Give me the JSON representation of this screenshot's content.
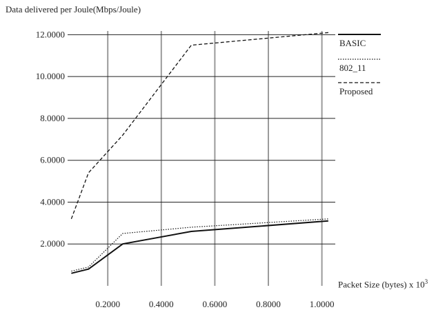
{
  "chart_data": {
    "type": "line",
    "title": "",
    "ylabel": "Data delivered per Joule(Mbps/Joule)",
    "xlabel": "Packet Size (bytes) x 10",
    "xlabel_sup": "3",
    "xlim": [
      0.05,
      1.05
    ],
    "ylim": [
      0,
      13
    ],
    "x_ticks": [
      0.2,
      0.4,
      0.6,
      0.8,
      1.0
    ],
    "x_tick_labels": [
      "0.2000",
      "0.4000",
      "0.6000",
      "0.8000",
      "1.0000"
    ],
    "y_ticks": [
      2,
      4,
      6,
      8,
      10,
      12
    ],
    "y_tick_labels": [
      "2.0000",
      "4.0000",
      "6.0000",
      "8.0000",
      "10.0000",
      "12.0000"
    ],
    "grid": true,
    "legend_position": "right",
    "series": [
      {
        "name": "BASIC",
        "style": "solid",
        "x": [
          0.064,
          0.128,
          0.256,
          0.512,
          1.024
        ],
        "y": [
          0.6,
          0.8,
          2.0,
          2.6,
          3.1
        ]
      },
      {
        "name": "802_11",
        "style": "dotted",
        "x": [
          0.064,
          0.128,
          0.256,
          0.512,
          1.024
        ],
        "y": [
          0.7,
          0.9,
          2.5,
          2.8,
          3.2
        ]
      },
      {
        "name": "Proposed",
        "style": "dashed",
        "x": [
          0.064,
          0.128,
          0.256,
          0.512,
          1.024
        ],
        "y": [
          3.2,
          5.4,
          7.2,
          11.5,
          12.1
        ]
      }
    ]
  }
}
